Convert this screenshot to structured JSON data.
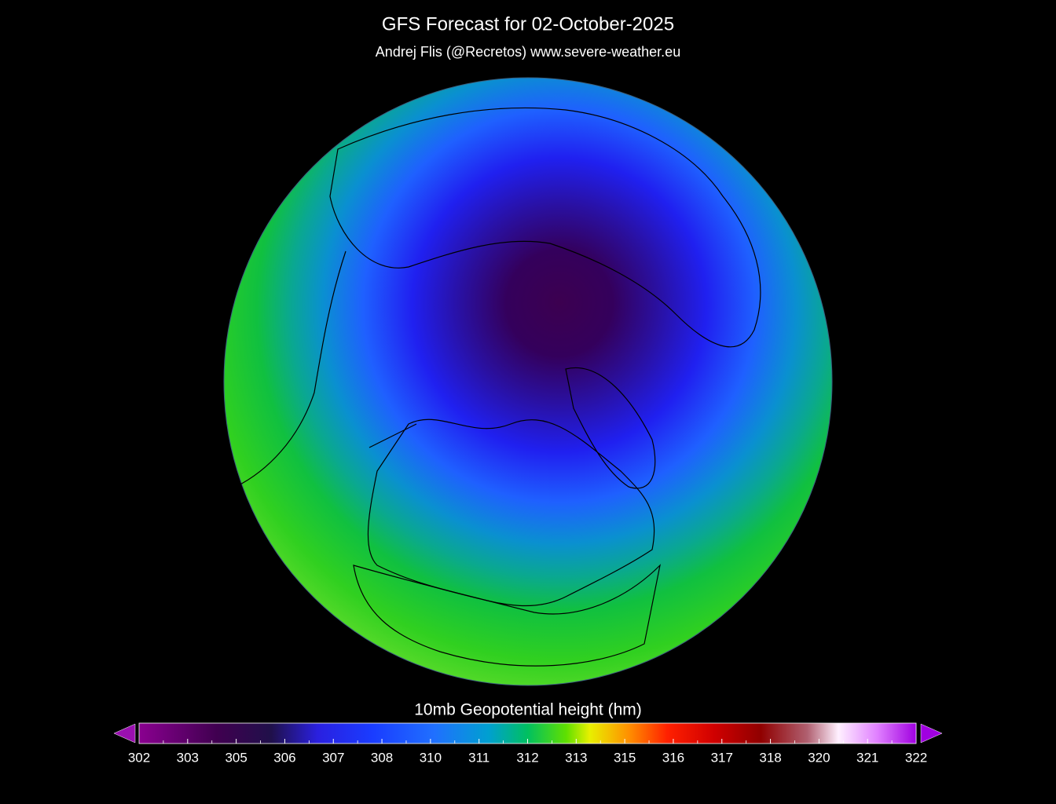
{
  "header": {
    "title": "GFS Forecast for  02-October-2025",
    "subtitle": "Andrej Flis (@Recretos)   www.severe-weather.eu"
  },
  "colorbar": {
    "label": "10mb Geopotential height (hm)",
    "ticks": [
      302,
      303,
      305,
      306,
      307,
      308,
      310,
      311,
      312,
      313,
      315,
      316,
      317,
      318,
      320,
      321,
      322
    ]
  }
}
